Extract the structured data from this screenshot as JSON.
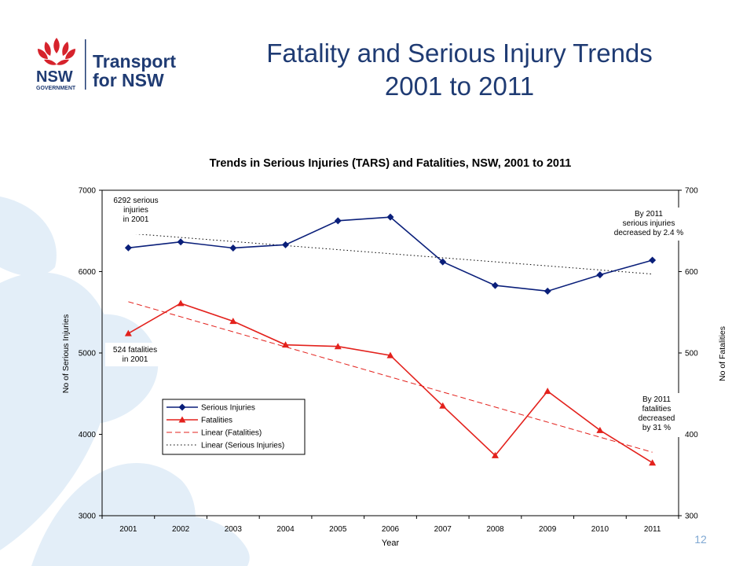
{
  "slide": {
    "title_line1": "Fatality and Serious Injury Trends",
    "title_line2": "2001 to 2011",
    "page_number": "12",
    "colors": {
      "title": "#1f3b73",
      "bg_shapes": "#e3eef8",
      "page_number": "#7fa8d3"
    }
  },
  "logo": {
    "wordmark": "NSW",
    "sub": "GOVERNMENT",
    "org_line1": "Transport",
    "org_line2": "for NSW",
    "colors": {
      "waratah": "#d6232c",
      "text": "#1f3b73"
    }
  },
  "chart_data": {
    "type": "line",
    "title": "Trends in Serious Injuries (TARS) and Fatalities, NSW, 2001 to 2011",
    "xlabel": "Year",
    "ylabel_left": "No of Serious Injuries",
    "ylabel_right": "No of Fatalities",
    "categories": [
      "2001",
      "2002",
      "2003",
      "2004",
      "2005",
      "2006",
      "2007",
      "2008",
      "2009",
      "2010",
      "2011"
    ],
    "ylim_left": [
      3000,
      7000
    ],
    "yticks_left": [
      "3000",
      "4000",
      "5000",
      "6000",
      "7000"
    ],
    "ylim_right": [
      300,
      700
    ],
    "yticks_right": [
      "300",
      "400",
      "500",
      "600",
      "700"
    ],
    "series": [
      {
        "name": "Serious Injuries",
        "axis": "left",
        "marker": "diamond",
        "color": "#0a1f7a",
        "values": [
          6292,
          6365,
          6290,
          6330,
          6625,
          6670,
          6120,
          5830,
          5760,
          5960,
          6140
        ]
      },
      {
        "name": "Fatalities",
        "axis": "right",
        "marker": "triangle",
        "color": "#e3211c",
        "values": [
          524,
          561,
          539,
          510,
          508,
          497,
          435,
          374,
          453,
          405,
          365
        ]
      }
    ],
    "trendlines": [
      {
        "name": "Linear (Fatalities)",
        "axis": "right",
        "style": "dashed",
        "color": "#e3211c",
        "start": 563,
        "end": 378
      },
      {
        "name": "Linear (Serious Injuries)",
        "axis": "left",
        "style": "dotted",
        "color": "#000000",
        "start": 6470,
        "end": 5970
      }
    ],
    "legend_position": "lower-left",
    "annotations": [
      {
        "lines": [
          "6292 serious",
          "injuries",
          "in 2001"
        ]
      },
      {
        "lines": [
          "524 fatalities",
          "in 2001"
        ]
      },
      {
        "lines": [
          "By 2011",
          "serious injuries",
          "decreased by 2.4 %"
        ]
      },
      {
        "lines": [
          "By 2011",
          "fatalities",
          "decreased",
          "by 31 %"
        ]
      }
    ],
    "grid": false
  }
}
